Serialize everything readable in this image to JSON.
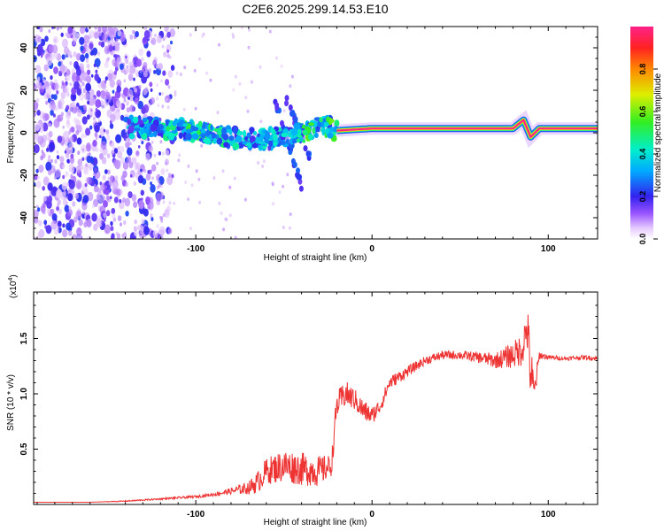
{
  "title": "C2E6.2025.299.14.53.E10",
  "chart_data": [
    {
      "type": "heatmap",
      "xlabel": "Height of straight line (km)",
      "ylabel": "Frequency (Hz)",
      "xlim": [
        -192,
        128
      ],
      "ylim": [
        -50,
        50
      ],
      "xticks": [
        -100,
        0,
        100
      ],
      "xtick_labels": [
        "-100",
        "0",
        "100"
      ],
      "yticks": [
        -40,
        -20,
        0,
        20,
        40
      ],
      "ytick_labels": [
        "-40",
        "-20",
        "0",
        "20",
        "40"
      ],
      "colorbar": {
        "label": "Normalized spectral amplitude",
        "range": [
          0,
          1
        ],
        "ticks": [
          0,
          0.2,
          0.4,
          0.6,
          0.8
        ],
        "tick_labels": [
          "0.0",
          "0.2",
          "0.4",
          "0.6",
          "0.8"
        ]
      },
      "ridge": {
        "x": [
          -140,
          -120,
          -100,
          -80,
          -60,
          -45,
          -35,
          -28,
          -20,
          0,
          40,
          80,
          86,
          90,
          95,
          128
        ],
        "y": [
          3,
          2,
          1,
          -2,
          -3,
          -2,
          1,
          4,
          1,
          2,
          2,
          2,
          6,
          -2,
          2,
          2
        ],
        "amplitude": [
          0.35,
          0.45,
          0.5,
          0.45,
          0.4,
          0.45,
          0.55,
          0.45,
          0.6,
          0.95,
          1.0,
          1.0,
          0.6,
          0.5,
          0.95,
          1.0
        ]
      },
      "noise_region_km": [
        -192,
        -125
      ],
      "branches": [
        {
          "x": [
            -55,
            -40
          ],
          "y": [
            15,
            -25
          ]
        },
        {
          "x": [
            -50,
            -35
          ],
          "y": [
            18,
            -12
          ]
        }
      ]
    },
    {
      "type": "line",
      "xlabel": "Height of straight line (km)",
      "ylabel": "SNR (10 * v/v)",
      "yscale_label": "(x10",
      "yscale_exp": "4",
      "yscale_close": ")",
      "xlim": [
        -192,
        128
      ],
      "ylim": [
        0,
        1.92
      ],
      "xticks": [
        -100,
        0,
        100
      ],
      "xtick_labels": [
        "-100",
        "0",
        "100"
      ],
      "yticks": [
        0.5,
        1.0,
        1.5
      ],
      "ytick_labels": [
        "0.5",
        "1.0",
        "1.5"
      ],
      "series": [
        {
          "name": "SNR",
          "color": "#ee3333",
          "x": [
            -192,
            -160,
            -140,
            -120,
            -100,
            -90,
            -80,
            -70,
            -65,
            -60,
            -50,
            -40,
            -30,
            -23,
            -20,
            -15,
            -10,
            -5,
            0,
            5,
            10,
            20,
            30,
            40,
            50,
            60,
            70,
            80,
            85,
            88,
            90,
            92,
            95,
            100,
            110,
            120,
            128
          ],
          "y": [
            0.02,
            0.02,
            0.03,
            0.05,
            0.07,
            0.09,
            0.12,
            0.15,
            0.2,
            0.3,
            0.35,
            0.32,
            0.3,
            0.35,
            0.9,
            1.0,
            0.95,
            0.85,
            0.8,
            0.9,
            1.1,
            1.2,
            1.3,
            1.35,
            1.35,
            1.33,
            1.3,
            1.35,
            1.4,
            1.6,
            1.2,
            1.0,
            1.35,
            1.33,
            1.32,
            1.33,
            1.32
          ],
          "noise": [
            0,
            0,
            0.005,
            0.008,
            0.012,
            0.015,
            0.03,
            0.06,
            0.1,
            0.12,
            0.15,
            0.15,
            0.14,
            0.1,
            0.12,
            0.12,
            0.1,
            0.1,
            0.08,
            0.07,
            0.06,
            0.05,
            0.04,
            0.04,
            0.04,
            0.05,
            0.07,
            0.12,
            0.15,
            0.22,
            0.3,
            0.15,
            0.04,
            0.02,
            0.02,
            0.02,
            0.02
          ]
        }
      ]
    }
  ]
}
